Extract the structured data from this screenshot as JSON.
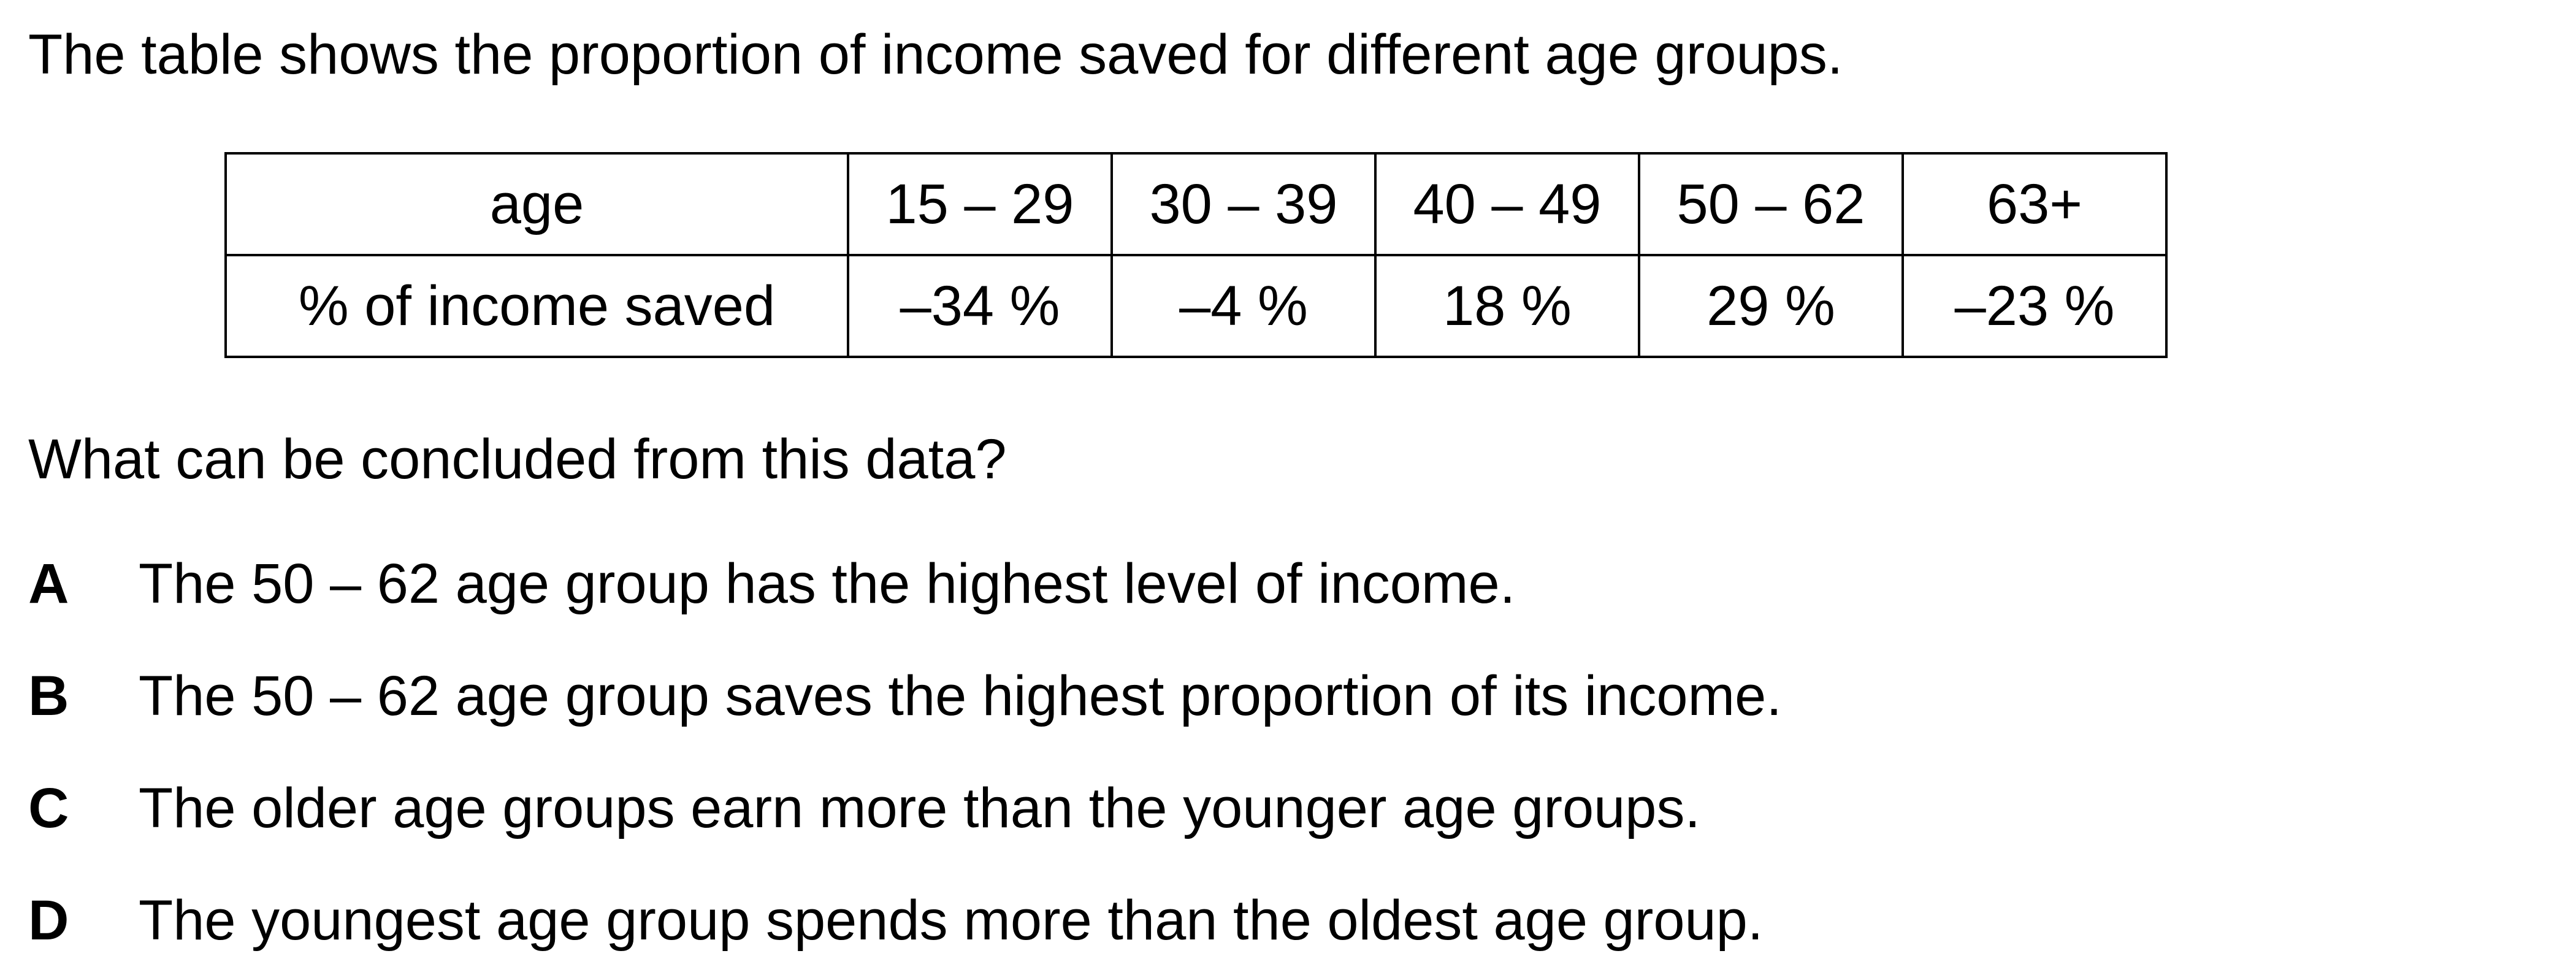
{
  "intro": "The table shows the proportion of income saved for different age groups.",
  "table": {
    "header_label": "age",
    "header_values": [
      "15 – 29",
      "30 – 39",
      "40 – 49",
      "50 – 62",
      "63+"
    ],
    "row_label": "% of income saved",
    "row_values": [
      "–34 %",
      "–4 %",
      "18 %",
      "29 %",
      "–23 %"
    ]
  },
  "question": "What can be concluded from this data?",
  "options": [
    {
      "letter": "A",
      "text": "The 50 – 62 age group has the highest level of income."
    },
    {
      "letter": "B",
      "text": "The 50 – 62 age group saves the highest proportion of its income."
    },
    {
      "letter": "C",
      "text": "The older age groups earn more than the younger age groups."
    },
    {
      "letter": "D",
      "text": "The youngest age group spends more than the oldest age group."
    }
  ]
}
